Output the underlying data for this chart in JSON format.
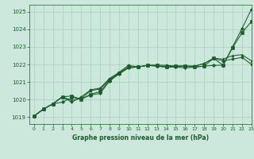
{
  "title": "Graphe pression niveau de la mer (hPa)",
  "bg_color": "#cce8dc",
  "grid_color": "#aacfbe",
  "line_color": "#1a5c2a",
  "marker_color": "#1a5c2a",
  "xlim": [
    -0.5,
    23
  ],
  "ylim": [
    1018.6,
    1025.4
  ],
  "xticks": [
    0,
    1,
    2,
    3,
    4,
    5,
    6,
    7,
    8,
    9,
    10,
    11,
    12,
    13,
    14,
    15,
    16,
    17,
    18,
    19,
    20,
    21,
    22,
    23
  ],
  "yticks": [
    1019,
    1020,
    1021,
    1022,
    1023,
    1024,
    1025
  ],
  "series": [
    [
      1019.05,
      1019.45,
      1019.75,
      1019.85,
      1020.1,
      1020.05,
      1020.25,
      1020.35,
      1021.05,
      1021.45,
      1021.8,
      1021.85,
      1021.95,
      1021.9,
      1021.85,
      1021.85,
      1021.8,
      1021.85,
      1021.9,
      1021.95,
      1021.95,
      1023.0,
      1024.05,
      1025.15
    ],
    [
      1019.05,
      1019.45,
      1019.75,
      1020.15,
      1020.2,
      1020.0,
      1020.3,
      1020.45,
      1021.1,
      1021.5,
      1021.85,
      1021.85,
      1021.95,
      1021.95,
      1021.85,
      1021.9,
      1021.9,
      1021.85,
      1021.9,
      1022.35,
      1021.95,
      1022.95,
      1023.8,
      1024.45
    ],
    [
      1019.05,
      1019.45,
      1019.75,
      1020.15,
      1019.95,
      1020.05,
      1020.5,
      1020.6,
      1021.15,
      1021.5,
      1021.85,
      1021.85,
      1021.95,
      1021.9,
      1021.85,
      1021.9,
      1021.9,
      1021.9,
      1022.05,
      1022.35,
      1022.3,
      1022.5,
      1022.55,
      1022.2
    ],
    [
      1019.05,
      1019.45,
      1019.75,
      1020.15,
      1019.85,
      1020.15,
      1020.55,
      1020.65,
      1021.2,
      1021.55,
      1021.95,
      1021.85,
      1021.95,
      1021.95,
      1021.95,
      1021.9,
      1021.9,
      1021.9,
      1022.05,
      1022.35,
      1022.2,
      1022.3,
      1022.4,
      1022.0
    ]
  ]
}
